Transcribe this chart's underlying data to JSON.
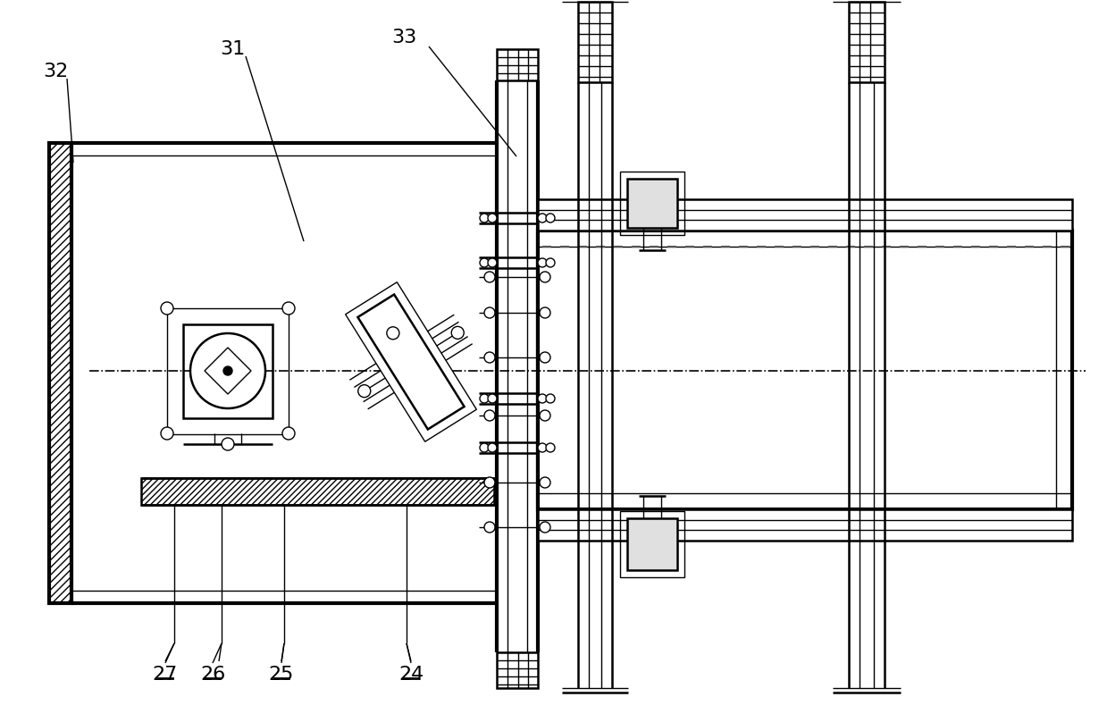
{
  "bg_color": "#ffffff",
  "fig_width": 12.39,
  "fig_height": 8.08,
  "dpi": 100
}
